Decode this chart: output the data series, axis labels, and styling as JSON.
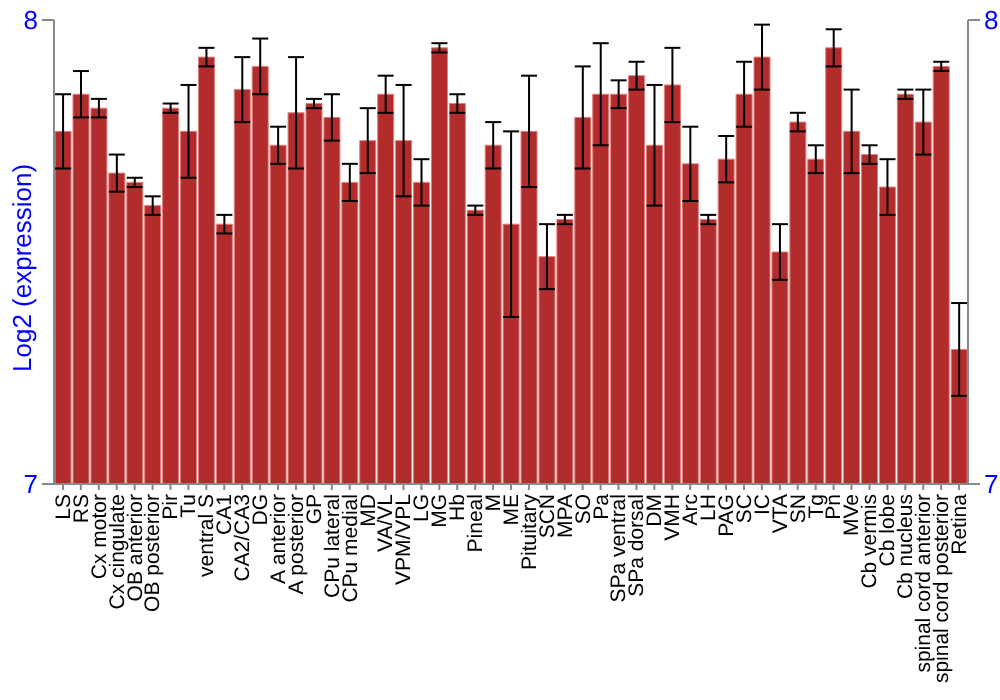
{
  "chart_data": {
    "type": "bar",
    "ylabel": "Log2 (expression)",
    "categories": [
      "LS",
      "RS",
      "Cx motor",
      "Cx cingulate",
      "OB anterior",
      "OB posterior",
      "Pir",
      "Tu",
      "ventral S",
      "CA1",
      "CA2/CA3",
      "DG",
      "A anterior",
      "A posterior",
      "GP",
      "CPu lateral",
      "CPu medial",
      "MD",
      "VA/VL",
      "VPM/VPL",
      "LG",
      "MG",
      "Hb",
      "Pineal",
      "M",
      "ME",
      "Pituitary",
      "SCN",
      "MPA",
      "SO",
      "Pa",
      "SPa ventral",
      "SPa dorsal",
      "DM",
      "VMH",
      "Arc",
      "LH",
      "PAG",
      "SC",
      "IC",
      "VTA",
      "SN",
      "Tg",
      "Pn",
      "MVe",
      "Cb vermis",
      "Cb lobe",
      "Cb nucleus",
      "spinal cord anterior",
      "spinal cord posterior",
      "Retina"
    ],
    "values": [
      7.76,
      7.84,
      7.81,
      7.67,
      7.65,
      7.6,
      7.81,
      7.76,
      7.92,
      7.56,
      7.85,
      7.9,
      7.73,
      7.8,
      7.82,
      7.79,
      7.65,
      7.74,
      7.84,
      7.74,
      7.65,
      7.94,
      7.82,
      7.59,
      7.73,
      7.56,
      7.76,
      7.49,
      7.57,
      7.79,
      7.84,
      7.84,
      7.88,
      7.73,
      7.86,
      7.69,
      7.57,
      7.7,
      7.84,
      7.92,
      7.5,
      7.78,
      7.7,
      7.94,
      7.76,
      7.71,
      7.64,
      7.84,
      7.78,
      7.9,
      7.29
    ],
    "errors": [
      0.08,
      0.05,
      0.02,
      0.04,
      0.01,
      0.02,
      0.01,
      0.1,
      0.02,
      0.02,
      0.07,
      0.06,
      0.04,
      0.12,
      0.01,
      0.05,
      0.04,
      0.07,
      0.04,
      0.12,
      0.05,
      0.01,
      0.02,
      0.01,
      0.05,
      0.2,
      0.12,
      0.07,
      0.01,
      0.11,
      0.11,
      0.03,
      0.03,
      0.13,
      0.08,
      0.08,
      0.01,
      0.05,
      0.07,
      0.07,
      0.06,
      0.02,
      0.03,
      0.04,
      0.09,
      0.02,
      0.06,
      0.01,
      0.07,
      0.01,
      0.1
    ],
    "color": "#b22c2c",
    "ylim": [
      7,
      8
    ],
    "yticks": [
      7,
      8
    ],
    "y2lim": [
      7,
      8
    ],
    "y2ticks": [
      7,
      8
    ],
    "grid": false
  }
}
